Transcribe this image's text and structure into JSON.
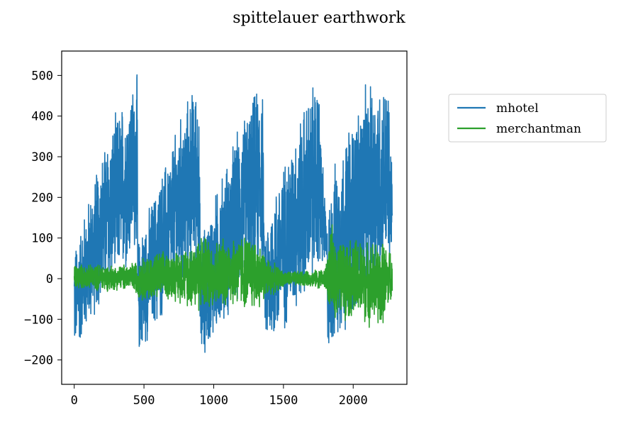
{
  "chart_data": {
    "type": "line",
    "title": "spittelauer earthwork",
    "xlabel": "",
    "ylabel": "",
    "xlim": [
      -90,
      2385
    ],
    "ylim": [
      -260,
      560
    ],
    "xticks": [
      0,
      500,
      1000,
      1500,
      2000
    ],
    "yticks": [
      -200,
      -100,
      0,
      100,
      200,
      300,
      400,
      500
    ],
    "xtick_labels": [
      "0",
      "500",
      "1000",
      "1500",
      "2000"
    ],
    "ytick_labels": [
      "−200",
      "−100",
      "0",
      "100",
      "200",
      "300",
      "400",
      "500"
    ],
    "grid": false,
    "legend_position": "outside right, upper",
    "n_points": 2281,
    "series": [
      {
        "name": "mhotel",
        "color": "#1f77b4",
        "description_points": {
          "x": [
            0,
            20,
            60,
            120,
            200,
            300,
            400,
            452,
            456,
            500,
            600,
            700,
            800,
            890,
            905,
            950,
            1050,
            1150,
            1250,
            1350,
            1362,
            1370,
            1450,
            1550,
            1650,
            1750,
            1810,
            1818,
            1850,
            1950,
            2050,
            2150,
            2250,
            2281
          ],
          "y_low": [
            -195,
            -190,
            -160,
            -120,
            -70,
            -30,
            20,
            60,
            -200,
            -180,
            -130,
            -80,
            -30,
            20,
            -220,
            -190,
            -140,
            -90,
            -40,
            10,
            50,
            -195,
            -170,
            -120,
            -70,
            -20,
            20,
            -210,
            -190,
            -140,
            -90,
            -40,
            0,
            10
          ],
          "y_high": [
            95,
            100,
            160,
            230,
            330,
            420,
            490,
            520,
            100,
            150,
            250,
            350,
            450,
            515,
            120,
            160,
            260,
            360,
            450,
            510,
            90,
            150,
            250,
            350,
            450,
            520,
            120,
            180,
            280,
            380,
            470,
            510,
            500,
            280
          ]
        }
      },
      {
        "name": "merchantman",
        "color": "#2ca02c",
        "description_points": {
          "x": [
            0,
            100,
            200,
            300,
            400,
            500,
            600,
            700,
            800,
            900,
            1000,
            1100,
            1200,
            1300,
            1400,
            1500,
            1600,
            1700,
            1800,
            1850,
            1900,
            2000,
            2100,
            2200,
            2281
          ],
          "y_low": [
            -30,
            -25,
            -35,
            -30,
            -30,
            -60,
            -60,
            -55,
            -70,
            -90,
            -80,
            -70,
            -80,
            -85,
            -50,
            -20,
            -20,
            -20,
            -30,
            -110,
            -100,
            -110,
            -120,
            -130,
            -60
          ],
          "y_high": [
            40,
            35,
            40,
            35,
            40,
            60,
            70,
            70,
            85,
            120,
            100,
            110,
            120,
            110,
            50,
            20,
            20,
            20,
            30,
            140,
            100,
            110,
            100,
            100,
            80
          ]
        }
      }
    ]
  }
}
